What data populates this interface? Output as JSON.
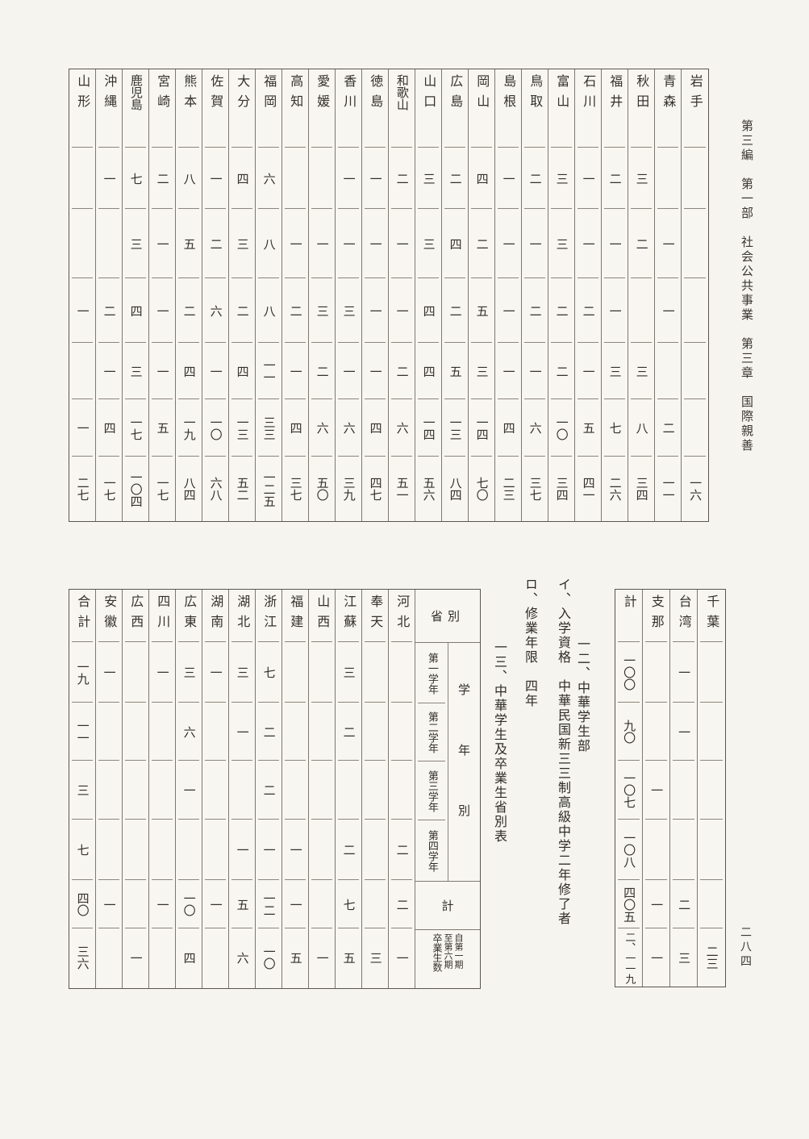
{
  "page": {
    "margin_title": "第三編　第一部　社会公共事業　第三章　国際親善",
    "page_number": "二八四"
  },
  "section_text": {
    "heading_12": "一二、中華学生部",
    "item_i": "イ、入学資格　中華民国新三三制高級中学二年修了者",
    "item_ro": "ロ、修業年限　四年",
    "heading_13": "一三、中華学生及卒業生省別表"
  },
  "prefecture_table": {
    "columns": [
      {
        "label": "山形",
        "values": [
          "",
          "",
          "一",
          "",
          "一",
          "二七"
        ]
      },
      {
        "label": "沖縄",
        "values": [
          "一",
          "",
          "二",
          "一",
          "四",
          "一七"
        ]
      },
      {
        "label": "鹿児島",
        "values": [
          "七",
          "三",
          "四",
          "三",
          "一七",
          "一〇四"
        ]
      },
      {
        "label": "宮崎",
        "values": [
          "二",
          "一",
          "一",
          "一",
          "五",
          "一七"
        ]
      },
      {
        "label": "熊本",
        "values": [
          "八",
          "五",
          "二",
          "四",
          "一九",
          "八四"
        ]
      },
      {
        "label": "佐賀",
        "values": [
          "一",
          "二",
          "六",
          "一",
          "一〇",
          "六八"
        ]
      },
      {
        "label": "大分",
        "values": [
          "四",
          "三",
          "二",
          "四",
          "一三",
          "五二"
        ]
      },
      {
        "label": "福岡",
        "values": [
          "六",
          "八",
          "八",
          "一一",
          "三三",
          "一二五"
        ]
      },
      {
        "label": "高知",
        "values": [
          "",
          "一",
          "二",
          "一",
          "四",
          "三七"
        ]
      },
      {
        "label": "愛媛",
        "values": [
          "",
          "一",
          "三",
          "二",
          "六",
          "五〇"
        ]
      },
      {
        "label": "香川",
        "values": [
          "一",
          "一",
          "三",
          "一",
          "六",
          "三九"
        ]
      },
      {
        "label": "徳島",
        "values": [
          "一",
          "一",
          "一",
          "一",
          "四",
          "四七"
        ]
      },
      {
        "label": "和歌山",
        "values": [
          "二",
          "一",
          "一",
          "二",
          "六",
          "五一"
        ]
      },
      {
        "label": "山口",
        "values": [
          "三",
          "三",
          "四",
          "四",
          "一四",
          "五六"
        ]
      },
      {
        "label": "広島",
        "values": [
          "二",
          "四",
          "二",
          "五",
          "一三",
          "八四"
        ]
      },
      {
        "label": "岡山",
        "values": [
          "四",
          "二",
          "五",
          "三",
          "一四",
          "七〇"
        ]
      },
      {
        "label": "島根",
        "values": [
          "一",
          "一",
          "一",
          "一",
          "四",
          "二三"
        ]
      },
      {
        "label": "鳥取",
        "values": [
          "二",
          "一",
          "二",
          "一",
          "六",
          "三七"
        ]
      },
      {
        "label": "富山",
        "values": [
          "三",
          "三",
          "二",
          "二",
          "一〇",
          "三四"
        ]
      },
      {
        "label": "石川",
        "values": [
          "一",
          "一",
          "二",
          "一",
          "五",
          "四一"
        ]
      },
      {
        "label": "福井",
        "values": [
          "二",
          "一",
          "一",
          "三",
          "七",
          "二六"
        ]
      },
      {
        "label": "秋田",
        "values": [
          "三",
          "二",
          "",
          "三",
          "八",
          "三四"
        ]
      },
      {
        "label": "青森",
        "values": [
          "",
          "一",
          "一",
          "",
          "二",
          "一一"
        ]
      },
      {
        "label": "岩手",
        "values": [
          "",
          "",
          "",
          "",
          "",
          "一六"
        ]
      }
    ]
  },
  "continuation_table": {
    "columns": [
      {
        "label": "計",
        "values": [
          "一〇〇",
          "九〇",
          "一〇七",
          "一〇八",
          "四〇五",
          "二、一一九"
        ]
      },
      {
        "label": "支那",
        "values": [
          "",
          "",
          "一",
          "",
          "一",
          "一"
        ]
      },
      {
        "label": "台湾",
        "values": [
          "一",
          "一",
          "",
          "",
          "二",
          "三"
        ]
      },
      {
        "label": "千葉",
        "values": [
          "",
          "",
          "",
          "",
          "",
          "二三"
        ]
      }
    ]
  },
  "province_table": {
    "header": {
      "corner": "省別",
      "group": "学年別",
      "rows": [
        "第一学年",
        "第二学年",
        "第三学年",
        "第四学年"
      ],
      "total": "計",
      "grads": "卒業生数",
      "grads_note_from": "自第一期",
      "grads_note_to": "至第六期"
    },
    "columns": [
      {
        "label": "合計",
        "values": [
          "一九",
          "一一",
          "三",
          "七",
          "四〇",
          "三六"
        ]
      },
      {
        "label": "安徽",
        "values": [
          "一",
          "",
          "",
          "",
          "一",
          ""
        ]
      },
      {
        "label": "広西",
        "values": [
          "",
          "",
          "",
          "",
          "",
          "一"
        ]
      },
      {
        "label": "四川",
        "values": [
          "一",
          "",
          "",
          "",
          "一",
          ""
        ]
      },
      {
        "label": "広東",
        "values": [
          "三",
          "六",
          "一",
          "",
          "一〇",
          "四"
        ]
      },
      {
        "label": "湖南",
        "values": [
          "一",
          "",
          "",
          "",
          "一",
          ""
        ]
      },
      {
        "label": "湖北",
        "values": [
          "三",
          "一",
          "",
          "一",
          "五",
          "六"
        ]
      },
      {
        "label": "浙江",
        "values": [
          "七",
          "二",
          "二",
          "一",
          "一二",
          "一〇"
        ]
      },
      {
        "label": "福建",
        "values": [
          "",
          "",
          "",
          "一",
          "一",
          "五"
        ]
      },
      {
        "label": "山西",
        "values": [
          "",
          "",
          "",
          "",
          "",
          "一"
        ]
      },
      {
        "label": "江蘇",
        "values": [
          "三",
          "二",
          "",
          "二",
          "七",
          "五"
        ]
      },
      {
        "label": "奉天",
        "values": [
          "",
          "",
          "",
          "",
          "",
          "三"
        ]
      },
      {
        "label": "河北",
        "values": [
          "",
          "",
          "",
          "二",
          "二",
          "一"
        ]
      }
    ]
  }
}
